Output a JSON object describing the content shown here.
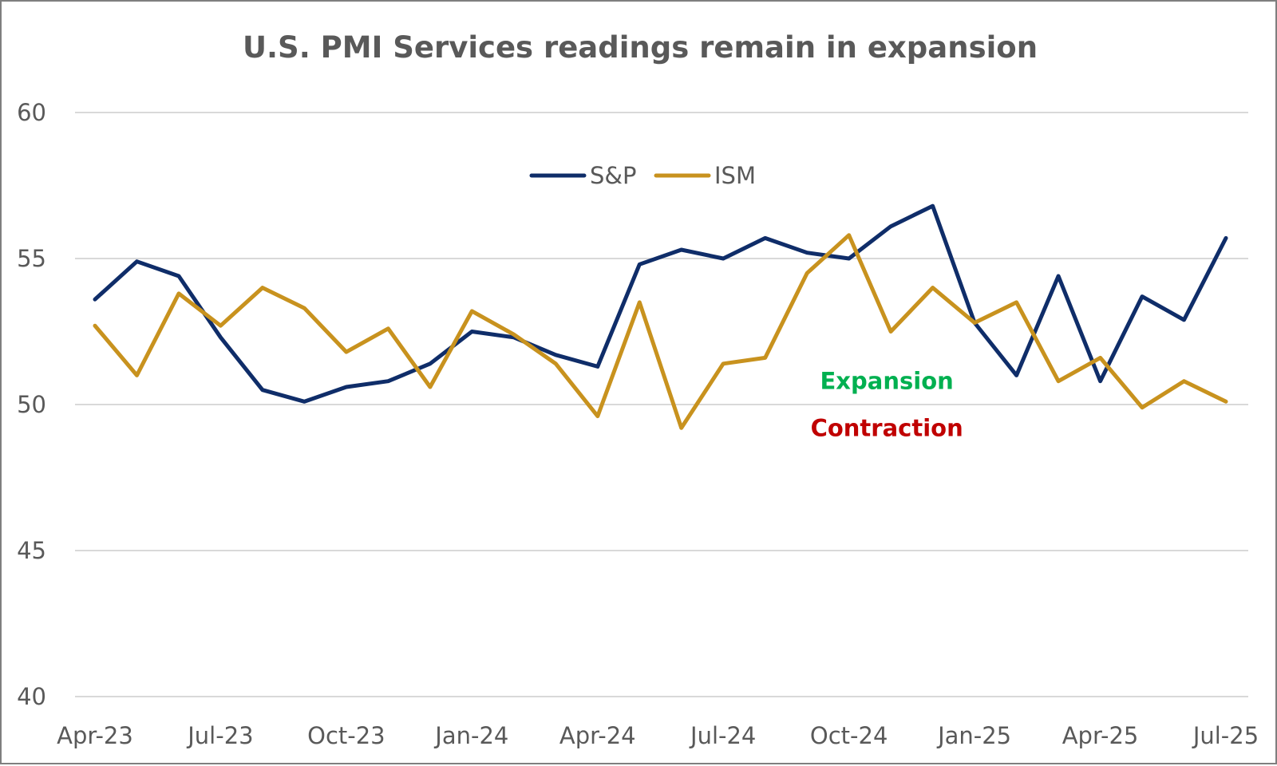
{
  "chart_data": {
    "type": "line",
    "title": "U.S. PMI Services readings remain in expansion",
    "xlabel": "",
    "ylabel": "",
    "ylim": [
      40,
      60
    ],
    "yticks": [
      40,
      45,
      50,
      55,
      60
    ],
    "grid": true,
    "legend_position": "top-center",
    "x": [
      "Apr-23",
      "May-23",
      "Jun-23",
      "Jul-23",
      "Aug-23",
      "Sep-23",
      "Oct-23",
      "Nov-23",
      "Dec-23",
      "Jan-24",
      "Feb-24",
      "Mar-24",
      "Apr-24",
      "May-24",
      "Jun-24",
      "Jul-24",
      "Aug-24",
      "Sep-24",
      "Oct-24",
      "Nov-24",
      "Dec-24",
      "Jan-25",
      "Feb-25",
      "Mar-25",
      "Apr-25",
      "May-25",
      "Jun-25",
      "Jul-25"
    ],
    "xtick_labels": [
      "Apr-23",
      "Jul-23",
      "Oct-23",
      "Jan-24",
      "Apr-24",
      "Jul-24",
      "Oct-24",
      "Jan-25",
      "Apr-25",
      "Jul-25"
    ],
    "series": [
      {
        "name": "S&P",
        "color": "#0f2d69",
        "values": [
          53.6,
          54.9,
          54.4,
          52.3,
          50.5,
          50.1,
          50.6,
          50.8,
          51.4,
          52.5,
          52.3,
          51.7,
          51.3,
          54.8,
          55.3,
          55.0,
          55.7,
          55.2,
          55.0,
          56.1,
          56.8,
          52.8,
          51.0,
          54.4,
          50.8,
          53.7,
          52.9,
          55.7
        ]
      },
      {
        "name": "ISM",
        "color": "#c8921e",
        "values": [
          52.7,
          51.0,
          53.8,
          52.7,
          54.0,
          53.3,
          51.8,
          52.6,
          50.6,
          53.2,
          52.4,
          51.4,
          49.6,
          53.5,
          49.2,
          51.4,
          51.6,
          54.5,
          55.8,
          52.5,
          54.0,
          52.8,
          53.5,
          50.8,
          51.6,
          49.9,
          50.8,
          50.1
        ]
      }
    ],
    "annotations": [
      {
        "text": "Expansion",
        "color": "#00b050",
        "at": {
          "x": "Nov-24",
          "y": 50.8
        }
      },
      {
        "text": "Contraction",
        "color": "#c00000",
        "at": {
          "x": "Nov-24",
          "y": 49.2
        }
      }
    ]
  }
}
